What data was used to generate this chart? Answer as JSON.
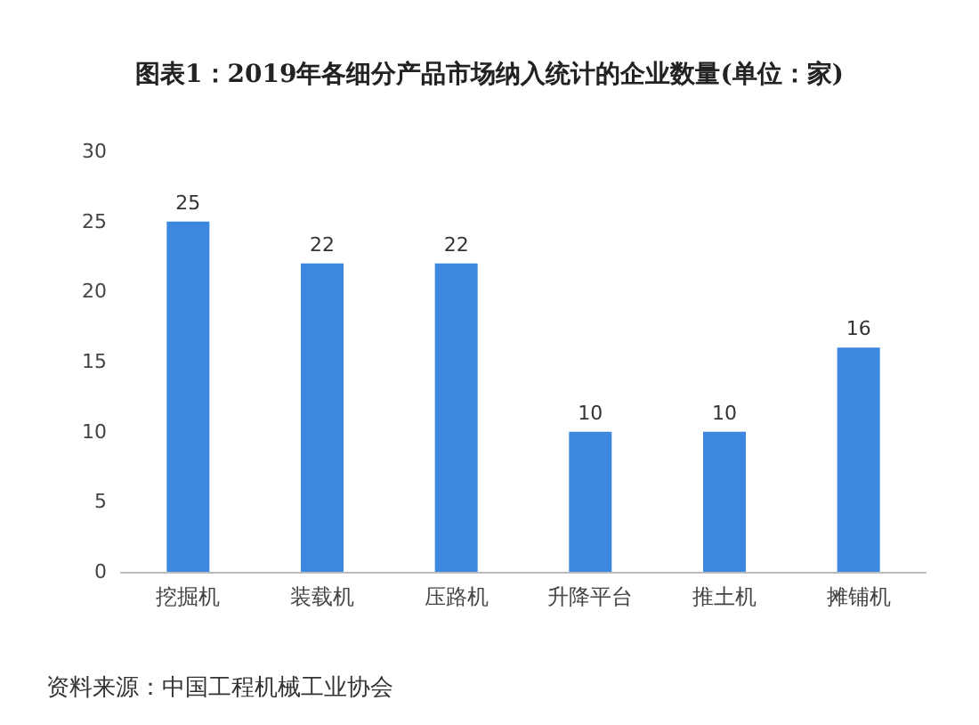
{
  "chart_data": {
    "type": "bar",
    "title": "图表1：2019年各细分产品市场纳入统计的企业数量(单位：家)",
    "categories": [
      "挖掘机",
      "装载机",
      "压路机",
      "升降平台",
      "推土机",
      "摊铺机"
    ],
    "values": [
      25,
      22,
      22,
      10,
      10,
      16
    ],
    "color": "#3c87e0",
    "ylim": [
      0,
      30
    ],
    "yticks": [
      0,
      5,
      10,
      15,
      20,
      25,
      30
    ],
    "grid": false,
    "data_labels": true,
    "annotations": [
      "资料来源：中国工程机械工业协会"
    ]
  }
}
